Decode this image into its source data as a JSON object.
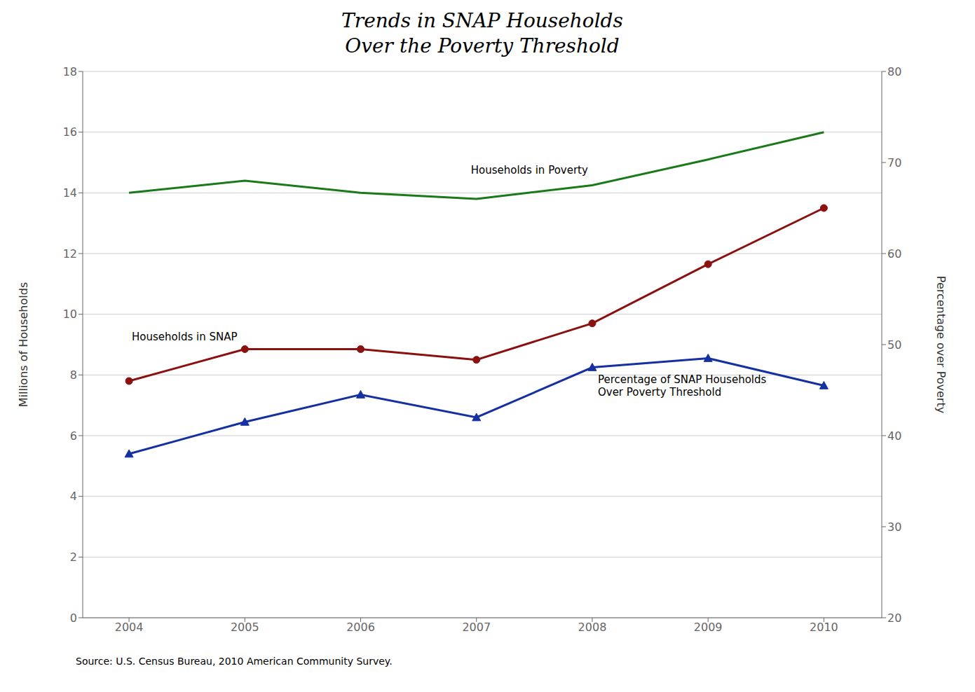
{
  "chart_data": {
    "type": "line",
    "title": "Trends in SNAP Households\nOver the Poverty Threshold",
    "x": [
      2004,
      2005,
      2006,
      2007,
      2008,
      2009,
      2010
    ],
    "xlim": [
      2003.6,
      2010.5
    ],
    "xticks": [
      2004,
      2005,
      2006,
      2007,
      2008,
      2009,
      2010
    ],
    "ylim": [
      0,
      18
    ],
    "yticks": [
      0,
      2,
      4,
      6,
      8,
      10,
      12,
      14,
      16,
      18
    ],
    "y2lim": [
      20,
      80
    ],
    "y2ticks": [
      20,
      30,
      40,
      50,
      60,
      70,
      80
    ],
    "ylabel": "Millions of Households",
    "y2label": "Percentage over Poverty",
    "grid": true,
    "source": "Source: U.S. Census Bureau, 2010 American Community Survey.",
    "series": [
      {
        "name": "Households in Poverty",
        "color": "#1a7a1a",
        "marker": "none",
        "values": [
          14.0,
          14.4,
          14.0,
          13.8,
          14.25,
          15.1,
          16.0
        ]
      },
      {
        "name": "Households in SNAP",
        "color": "#8B1010",
        "marker": "circle",
        "values": [
          7.8,
          8.85,
          8.85,
          8.5,
          9.7,
          11.65,
          13.5
        ]
      },
      {
        "name": "Percentage of SNAP Households\nOver Poverty Threshold",
        "color": "#1530A0",
        "marker": "triangle",
        "axis": "y2",
        "values": [
          38.0,
          41.5,
          44.5,
          42.0,
          47.5,
          48.5,
          45.5
        ]
      }
    ]
  }
}
